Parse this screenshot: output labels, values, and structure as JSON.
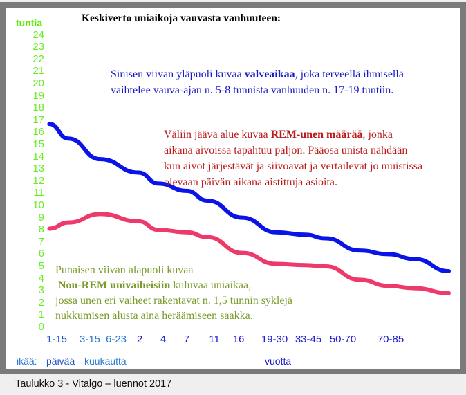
{
  "chart_data": {
    "type": "line",
    "title": "Keskiverto uniaikoja vauvasta vanhuuteen:",
    "ylabel": "tuntia",
    "ylim": [
      0,
      24
    ],
    "yticks": [
      0,
      1,
      2,
      3,
      4,
      5,
      6,
      7,
      8,
      9,
      10,
      11,
      12,
      13,
      14,
      15,
      16,
      17,
      18,
      19,
      20,
      21,
      22,
      23,
      24
    ],
    "categories": [
      "1-15",
      "3-15",
      "6-23",
      "2",
      "4",
      "7",
      "11",
      "16",
      "19-30",
      "33-45",
      "50-70",
      "70-85"
    ],
    "category_colors": [
      "#2255cc",
      "#2a7ad0",
      "#2a7ad0",
      "#1a1acc",
      "#1a1acc",
      "#1a1acc",
      "#1a1acc",
      "#1a1acc",
      "#1a1acc",
      "#1a1acc",
      "#1a1acc",
      "#1a1acc"
    ],
    "x_note": "x values are fractional category indices",
    "series": [
      {
        "name": "valveaika-raja",
        "color": "#0a14e6",
        "x": [
          -0.4,
          0.35,
          1.4,
          2.95,
          3.8,
          5,
          5.75,
          7.1,
          8.05,
          8.9,
          9.5,
          10.35,
          10.95,
          11.5,
          12.2
        ],
        "y": [
          16.7,
          15.5,
          13.8,
          12.7,
          11.8,
          11.2,
          10.4,
          9.0,
          7.8,
          7.6,
          7.3,
          6.3,
          6.0,
          5.6,
          4.6
        ]
      },
      {
        "name": "non-rem-raja",
        "color": "#ee3a6a",
        "x": [
          -0.4,
          0.35,
          1.4,
          2.95,
          3.8,
          5,
          5.75,
          7.1,
          8.05,
          8.9,
          9.5,
          10.35,
          10.95,
          11.5,
          12.2
        ],
        "y": [
          8.1,
          8.6,
          9.3,
          8.7,
          8.0,
          7.8,
          7.4,
          6.1,
          5.2,
          5.1,
          5.0,
          3.9,
          3.4,
          3.2,
          2.8
        ]
      }
    ],
    "grid": false,
    "unit_labels": {
      "prefix": "ikää:",
      "days": "päivää",
      "months": "kuukautta",
      "years": "vuotta"
    }
  },
  "notes": {
    "blue": {
      "pre": "Sinisen viivan yläpuoli kuvaa ",
      "bold": "valveaikaa",
      "post": ", joka terveellä ihmisellä",
      "line2": "vaihtelee vauva-ajan n. 5-8 tunnista vanhuuden n. 17-19 tuntiin."
    },
    "red": {
      "pre": "Väliin jäävä alue kuvaa ",
      "bold": "REM-unen määrää",
      "post": ", jonka",
      "line2": "aikana aivoissa tapahtuu paljon. Pääosa unista nähdään",
      "line3": "kun aivot järjestävät ja siivoavat ja vertailevat jo muistissa",
      "line4": "olevaan päivän aikana aistittuja asioita."
    },
    "olive": {
      "line1": "Punaisen viivan alapuoli kuvaa",
      "bold": "Non-REM univaiheisiin",
      "post": " kuluvaa uniaikaa,",
      "line3": "jossa unen eri vaiheet rakentavat n. 1,5 tunnin syklejä",
      "line4": "nukkumisen alusta aina heräämiseen saakka."
    }
  },
  "caption": "Taulukko 3 -  Vitalgo – luennot 2017"
}
